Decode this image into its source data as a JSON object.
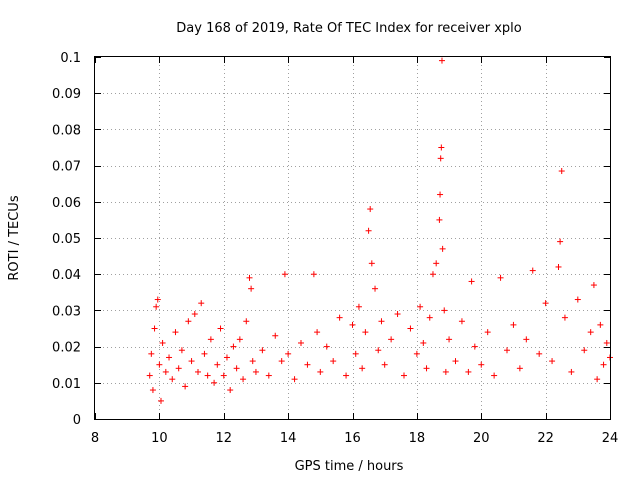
{
  "chart_data": {
    "type": "scatter",
    "title": "Day 168 of 2019, Rate Of TEC Index for receiver xplo",
    "xlabel": "GPS time / hours",
    "ylabel": "ROTI / TECUs",
    "xlim": [
      8,
      24
    ],
    "ylim": [
      0,
      0.1
    ],
    "xticks": [
      8,
      10,
      12,
      14,
      16,
      18,
      20,
      22,
      24
    ],
    "yticks": [
      0,
      0.01,
      0.02,
      0.03,
      0.04,
      0.05,
      0.06,
      0.07,
      0.08,
      0.09,
      0.1
    ],
    "xtick_labels": [
      "8",
      "10",
      "12",
      "14",
      "16",
      "18",
      "20",
      "22",
      "24"
    ],
    "ytick_labels": [
      "0",
      "0.01",
      "0.02",
      "0.03",
      "0.04",
      "0.05",
      "0.06",
      "0.07",
      "0.08",
      "0.09",
      "0.1"
    ],
    "grid": true,
    "marker": "+",
    "series": [
      {
        "name": "ROTI",
        "color": "#ff0000",
        "points": [
          [
            9.7,
            0.012
          ],
          [
            9.75,
            0.018
          ],
          [
            9.8,
            0.008
          ],
          [
            9.85,
            0.025
          ],
          [
            9.9,
            0.031
          ],
          [
            9.95,
            0.033
          ],
          [
            10.0,
            0.015
          ],
          [
            10.05,
            0.005
          ],
          [
            10.1,
            0.021
          ],
          [
            10.2,
            0.013
          ],
          [
            10.3,
            0.017
          ],
          [
            10.4,
            0.011
          ],
          [
            10.5,
            0.024
          ],
          [
            10.6,
            0.014
          ],
          [
            10.7,
            0.019
          ],
          [
            10.8,
            0.009
          ],
          [
            10.9,
            0.027
          ],
          [
            11.0,
            0.016
          ],
          [
            11.1,
            0.029
          ],
          [
            11.2,
            0.013
          ],
          [
            11.3,
            0.032
          ],
          [
            11.4,
            0.018
          ],
          [
            11.5,
            0.012
          ],
          [
            11.6,
            0.022
          ],
          [
            11.7,
            0.01
          ],
          [
            11.8,
            0.015
          ],
          [
            11.9,
            0.025
          ],
          [
            12.0,
            0.012
          ],
          [
            12.1,
            0.017
          ],
          [
            12.2,
            0.008
          ],
          [
            12.3,
            0.02
          ],
          [
            12.4,
            0.014
          ],
          [
            12.5,
            0.022
          ],
          [
            12.6,
            0.011
          ],
          [
            12.7,
            0.027
          ],
          [
            12.8,
            0.039
          ],
          [
            12.85,
            0.036
          ],
          [
            12.9,
            0.016
          ],
          [
            13.0,
            0.013
          ],
          [
            13.2,
            0.019
          ],
          [
            13.4,
            0.012
          ],
          [
            13.6,
            0.023
          ],
          [
            13.8,
            0.016
          ],
          [
            13.9,
            0.04
          ],
          [
            14.0,
            0.018
          ],
          [
            14.2,
            0.011
          ],
          [
            14.4,
            0.021
          ],
          [
            14.6,
            0.015
          ],
          [
            14.8,
            0.04
          ],
          [
            14.9,
            0.024
          ],
          [
            15.0,
            0.013
          ],
          [
            15.2,
            0.02
          ],
          [
            15.4,
            0.016
          ],
          [
            15.6,
            0.028
          ],
          [
            15.8,
            0.012
          ],
          [
            16.0,
            0.026
          ],
          [
            16.1,
            0.018
          ],
          [
            16.2,
            0.031
          ],
          [
            16.3,
            0.014
          ],
          [
            16.4,
            0.024
          ],
          [
            16.5,
            0.052
          ],
          [
            16.55,
            0.058
          ],
          [
            16.6,
            0.043
          ],
          [
            16.7,
            0.036
          ],
          [
            16.8,
            0.019
          ],
          [
            16.9,
            0.027
          ],
          [
            17.0,
            0.015
          ],
          [
            17.2,
            0.022
          ],
          [
            17.4,
            0.029
          ],
          [
            17.6,
            0.012
          ],
          [
            17.8,
            0.025
          ],
          [
            18.0,
            0.018
          ],
          [
            18.1,
            0.031
          ],
          [
            18.2,
            0.021
          ],
          [
            18.3,
            0.014
          ],
          [
            18.4,
            0.028
          ],
          [
            18.5,
            0.04
          ],
          [
            18.6,
            0.043
          ],
          [
            18.7,
            0.055
          ],
          [
            18.72,
            0.062
          ],
          [
            18.74,
            0.072
          ],
          [
            18.76,
            0.075
          ],
          [
            18.78,
            0.099
          ],
          [
            18.8,
            0.047
          ],
          [
            18.85,
            0.03
          ],
          [
            18.9,
            0.013
          ],
          [
            19.0,
            0.022
          ],
          [
            19.2,
            0.016
          ],
          [
            19.4,
            0.027
          ],
          [
            19.6,
            0.013
          ],
          [
            19.7,
            0.038
          ],
          [
            19.8,
            0.02
          ],
          [
            20.0,
            0.015
          ],
          [
            20.2,
            0.024
          ],
          [
            20.4,
            0.012
          ],
          [
            20.6,
            0.039
          ],
          [
            20.8,
            0.019
          ],
          [
            21.0,
            0.026
          ],
          [
            21.2,
            0.014
          ],
          [
            21.4,
            0.022
          ],
          [
            21.6,
            0.041
          ],
          [
            21.8,
            0.018
          ],
          [
            22.0,
            0.032
          ],
          [
            22.2,
            0.016
          ],
          [
            22.4,
            0.042
          ],
          [
            22.45,
            0.049
          ],
          [
            22.5,
            0.0685
          ],
          [
            22.6,
            0.028
          ],
          [
            22.8,
            0.013
          ],
          [
            23.0,
            0.033
          ],
          [
            23.2,
            0.019
          ],
          [
            23.4,
            0.024
          ],
          [
            23.5,
            0.037
          ],
          [
            23.6,
            0.011
          ],
          [
            23.7,
            0.026
          ],
          [
            23.8,
            0.015
          ],
          [
            23.9,
            0.021
          ],
          [
            24.0,
            0.017
          ]
        ]
      }
    ]
  }
}
